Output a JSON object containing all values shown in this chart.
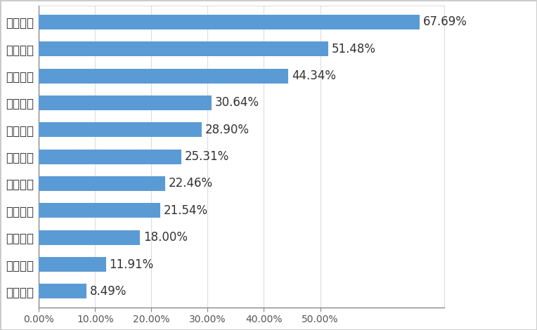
{
  "categories": [
    "就业培训",
    "子女就学",
    "公益体检",
    "事故救济",
    "安全教育",
    "困难帮扶",
    "价格指导",
    "维护权益",
    "纠纷协调",
    "应急救援",
    "法律援助"
  ],
  "values": [
    0.0849,
    0.1191,
    0.18,
    0.2154,
    0.2246,
    0.2531,
    0.289,
    0.3064,
    0.4434,
    0.5148,
    0.6769
  ],
  "labels": [
    "8.49%",
    "11.91%",
    "18.00%",
    "21.54%",
    "22.46%",
    "25.31%",
    "28.90%",
    "30.64%",
    "44.34%",
    "51.48%",
    "67.69%"
  ],
  "bar_color": "#5B9BD5",
  "background_color": "#FFFFFF",
  "plot_bg_color": "#FFFFFF",
  "xlim": [
    0,
    0.72
  ],
  "xticks": [
    0.0,
    0.1,
    0.2,
    0.3,
    0.4,
    0.5
  ],
  "xtick_labels": [
    "0.00%",
    "10.00%",
    "20.00%",
    "30.00%",
    "40.00%",
    "50.00%"
  ],
  "label_fontsize": 12,
  "tick_fontsize": 10,
  "bar_height": 0.55
}
